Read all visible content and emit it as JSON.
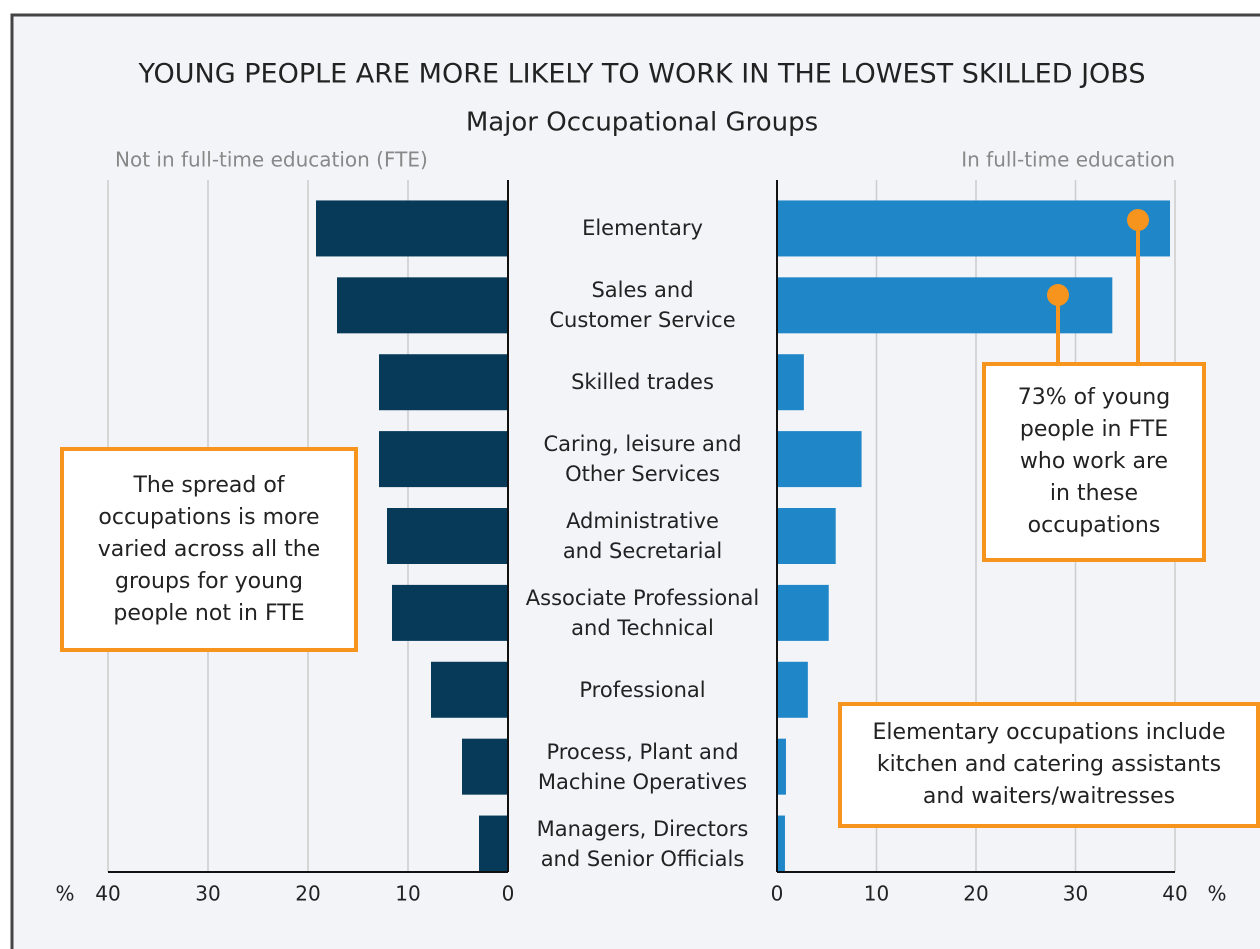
{
  "chart_data": {
    "type": "butterfly-bar",
    "title": "YOUNG PEOPLE ARE MORE LIKELY TO WORK IN THE LOWEST SKILLED JOBS",
    "subtitle": "Major Occupational Groups",
    "categories": [
      "Elementary",
      "Sales and\nCustomer Service",
      "Skilled trades",
      "Caring, leisure and\nOther Services",
      "Administrative\nand Secretarial",
      "Associate Professional\nand Technical",
      "Professional",
      "Process, Plant and\nMachine Operatives",
      "Managers, Directors\nand Senior Officials"
    ],
    "series": [
      {
        "name": "Not in full-time education (FTE)",
        "color": "#063a58",
        "side": "left",
        "values": [
          19.2,
          17.1,
          12.9,
          12.9,
          12.1,
          11.6,
          7.7,
          4.6,
          2.9
        ]
      },
      {
        "name": "In full-time education",
        "color": "#1f86c8",
        "side": "right",
        "values": [
          39.5,
          33.7,
          2.7,
          8.5,
          5.9,
          5.2,
          3.1,
          0.9,
          0.8
        ]
      }
    ],
    "xlim": [
      0,
      40
    ],
    "xticks": [
      0,
      10,
      20,
      30,
      40
    ],
    "x_unit": "%",
    "grid": true,
    "annotation_color": "#f7941d",
    "annotations": [
      "The spread of\noccupations is more\nvaried across all the\ngroups for young\npeople not in FTE",
      "73% of young\npeople in FTE\nwho work are\nin these\noccupations",
      "Elementary occupations include\nkitchen and catering assistants\nand waiters/waitresses"
    ]
  }
}
